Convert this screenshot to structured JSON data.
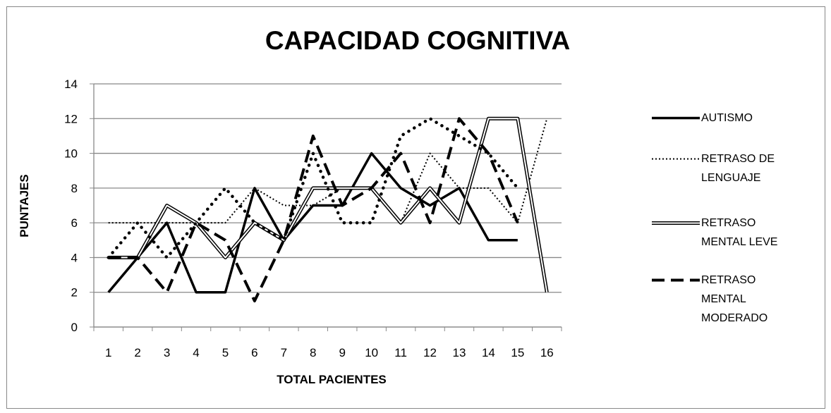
{
  "chart_data": {
    "type": "line",
    "title": "CAPACIDAD COGNITIVA",
    "x_label": "TOTAL PACIENTES",
    "y_label": "PUNTAJES",
    "categories": [
      "1",
      "2",
      "3",
      "4",
      "5",
      "6",
      "7",
      "8",
      "9",
      "10",
      "11",
      "12",
      "13",
      "14",
      "15",
      "16"
    ],
    "ylim": [
      0,
      14
    ],
    "yticks": [
      0,
      2,
      4,
      6,
      8,
      10,
      12,
      14
    ],
    "grid": true,
    "legend": "right",
    "series": [
      {
        "name": "AUTISMO",
        "color": "#000000",
        "style": "solid",
        "values": [
          2,
          4,
          6,
          2,
          2,
          8,
          5,
          7,
          7,
          10,
          8,
          7,
          8,
          5,
          5,
          null
        ]
      },
      {
        "name": "RETRASO DE LENGUAJE",
        "color": "#000000",
        "style": "dotted",
        "values": [
          6,
          6,
          6,
          6,
          6,
          8,
          7,
          7,
          8,
          8,
          6,
          10,
          8,
          8,
          6,
          12
        ]
      },
      {
        "name": "RETRASO MENTAL LEVE",
        "color": "#000000",
        "style": "double",
        "values": [
          4,
          4,
          7,
          6,
          4,
          6,
          5,
          8,
          8,
          8,
          6,
          8,
          6,
          12,
          12,
          2
        ]
      },
      {
        "name": "RETRASO MENTAL MODERADO",
        "color": "#000000",
        "style": "dashed",
        "values": [
          4,
          4,
          2,
          6,
          5,
          1.5,
          5,
          11,
          7,
          8,
          10,
          6,
          12,
          10,
          6,
          null
        ]
      },
      {
        "color": "#000000",
        "style": "round-dot",
        "values": [
          4,
          6,
          4,
          6,
          8,
          6,
          5,
          10,
          6,
          6,
          11,
          12,
          11,
          10,
          8,
          null
        ]
      }
    ]
  }
}
